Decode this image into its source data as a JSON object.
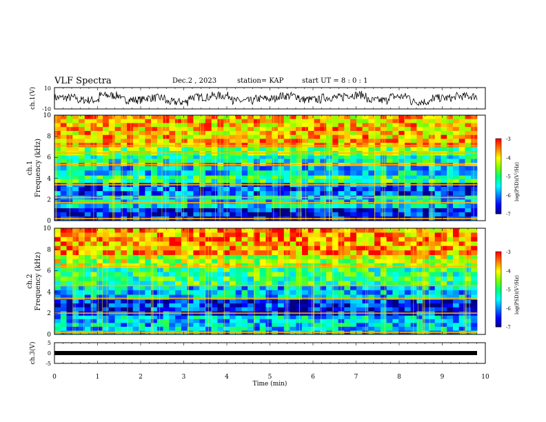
{
  "header": {
    "title": "VLF Spectra",
    "date": "Dec.2 , 2023",
    "station": "station= KAP",
    "start": "start  UT =  8 : 0  : 1"
  },
  "colors": {
    "waveform": "#000000",
    "colormap": [
      "#000080",
      "#0000ff",
      "#0080ff",
      "#00ffff",
      "#00ff80",
      "#80ff00",
      "#ffff00",
      "#ff8000",
      "#ff0000",
      "#ffffff"
    ]
  },
  "chart_data": [
    {
      "id": "ch1-waveform",
      "type": "line",
      "ylabel": "ch.1(V)",
      "ylim": [
        -10,
        10
      ],
      "yticks": [
        "10",
        "-10"
      ],
      "xlim": [
        0,
        10
      ],
      "description_series": "noise waveform",
      "values": [
        0.6,
        -2,
        3,
        -1.8,
        0.4,
        -4.2,
        1.2,
        2.8,
        -3,
        -0.6,
        2.5,
        -1.5,
        0.8,
        3.6,
        -2.4,
        1.8,
        -3.8,
        0.2,
        2.2,
        -0.4
      ]
    },
    {
      "id": "ch1-spectrogram",
      "type": "heatmap",
      "ylabel": "ch.1\nFrequency (kHz)",
      "ylim": [
        0,
        10
      ],
      "yticks": [
        "0",
        "2",
        "4",
        "6",
        "8",
        "10"
      ],
      "xlim": [
        0,
        10
      ],
      "colorbar": {
        "label": "log(PSD)(V²/Hz)",
        "range": [
          -7,
          -3
        ],
        "ticks": [
          "-3",
          "-4",
          "-5",
          "-6",
          "-7"
        ]
      },
      "bands_khz": [
        {
          "from": 0.0,
          "to": 1.2,
          "level": -6.5
        },
        {
          "from": 1.2,
          "to": 2.4,
          "level": -5.5
        },
        {
          "from": 2.4,
          "to": 3.6,
          "level": -6.2
        },
        {
          "from": 3.6,
          "to": 4.3,
          "level": -5.0
        },
        {
          "from": 4.3,
          "to": 5.2,
          "level": -5.6
        },
        {
          "from": 5.2,
          "to": 5.5,
          "level": -3.6
        },
        {
          "from": 5.5,
          "to": 6.2,
          "level": -5.3
        },
        {
          "from": 6.2,
          "to": 7.0,
          "level": -4.6
        },
        {
          "from": 7.0,
          "to": 10.0,
          "level": -3.8
        }
      ],
      "lines_khz": [
        0.2,
        1.7,
        2.2,
        3.4,
        5.3,
        6.4,
        7.1
      ]
    },
    {
      "id": "ch2-spectrogram",
      "type": "heatmap",
      "ylabel": "ch.2\nFrequency (kHz)",
      "ylim": [
        0,
        10
      ],
      "yticks": [
        "0",
        "2",
        "4",
        "6",
        "8",
        "10"
      ],
      "xlim": [
        0,
        10
      ],
      "colorbar": {
        "label": "log(PSD)(V²/Hz)",
        "range": [
          -7,
          -3
        ],
        "ticks": [
          "-3",
          "-4",
          "-5",
          "-6",
          "-7"
        ]
      },
      "bands_khz": [
        {
          "from": 0.0,
          "to": 1.8,
          "level": -5.6
        },
        {
          "from": 1.8,
          "to": 3.3,
          "level": -6.4
        },
        {
          "from": 3.3,
          "to": 4.6,
          "level": -5.6
        },
        {
          "from": 4.6,
          "to": 6.3,
          "level": -5.0
        },
        {
          "from": 6.3,
          "to": 7.5,
          "level": -4.3
        },
        {
          "from": 7.5,
          "to": 10.0,
          "level": -3.6
        }
      ],
      "lines_khz": [
        0.2,
        2.0,
        3.4,
        4.6,
        6.4
      ]
    },
    {
      "id": "ch3-waveform",
      "type": "line",
      "ylabel": "ch.3(V)",
      "ylim": [
        -5,
        5
      ],
      "yticks": [
        "5",
        "0",
        "-5"
      ],
      "xlim": [
        0,
        10
      ],
      "xlabel": "Time (min)",
      "xticks": [
        "0",
        "1",
        "2",
        "3",
        "4",
        "5",
        "6",
        "7",
        "8",
        "9",
        "10"
      ],
      "level": 0
    }
  ]
}
